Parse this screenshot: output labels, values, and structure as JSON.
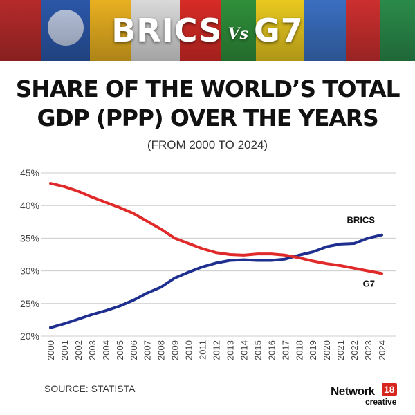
{
  "banner": {
    "title_left": "BRICS",
    "title_vs": "Vs",
    "title_right": "G7"
  },
  "title_line1": "SHARE OF THE WORLD’S TOTAL",
  "title_line2": "GDP (PPP) OVER THE YEARS",
  "subtitle": "(FROM 2000 TO 2024)",
  "source": "SOURCE: STATISTA",
  "logo": {
    "name": "Network",
    "number": "18",
    "sub": "creative"
  },
  "chart_data": {
    "type": "line",
    "title": "SHARE OF THE WORLD’S TOTAL GDP (PPP) OVER THE YEARS",
    "subtitle": "(FROM 2000 TO 2024)",
    "x": [
      "2000",
      "2001",
      "2002",
      "2003",
      "2004",
      "2005",
      "2006",
      "2007",
      "2008",
      "2009",
      "2010",
      "2011",
      "2012",
      "2013",
      "2014",
      "2015",
      "2016",
      "2017",
      "2018",
      "2019",
      "2020",
      "2021",
      "2022",
      "2023",
      "2024"
    ],
    "ylim": [
      20,
      45
    ],
    "yticks": [
      20,
      25,
      30,
      35,
      40,
      45
    ],
    "ytick_labels": [
      "20%",
      "25%",
      "30%",
      "35%",
      "40%",
      "45%"
    ],
    "grid": "horizontal",
    "series": [
      {
        "name": "BRICS",
        "color": "#1f2f8f",
        "values": [
          21.3,
          21.9,
          22.6,
          23.3,
          23.9,
          24.6,
          25.5,
          26.6,
          27.5,
          28.9,
          29.8,
          30.6,
          31.2,
          31.6,
          31.7,
          31.6,
          31.6,
          31.8,
          32.4,
          32.9,
          33.7,
          34.1,
          34.2,
          35.0,
          35.5
        ]
      },
      {
        "name": "G7",
        "color": "#e02a2a",
        "values": [
          43.4,
          42.9,
          42.2,
          41.3,
          40.5,
          39.7,
          38.8,
          37.6,
          36.4,
          35.0,
          34.2,
          33.4,
          32.8,
          32.5,
          32.4,
          32.6,
          32.6,
          32.4,
          32.0,
          31.5,
          31.1,
          30.8,
          30.4,
          30.0,
          29.6
        ]
      }
    ]
  }
}
